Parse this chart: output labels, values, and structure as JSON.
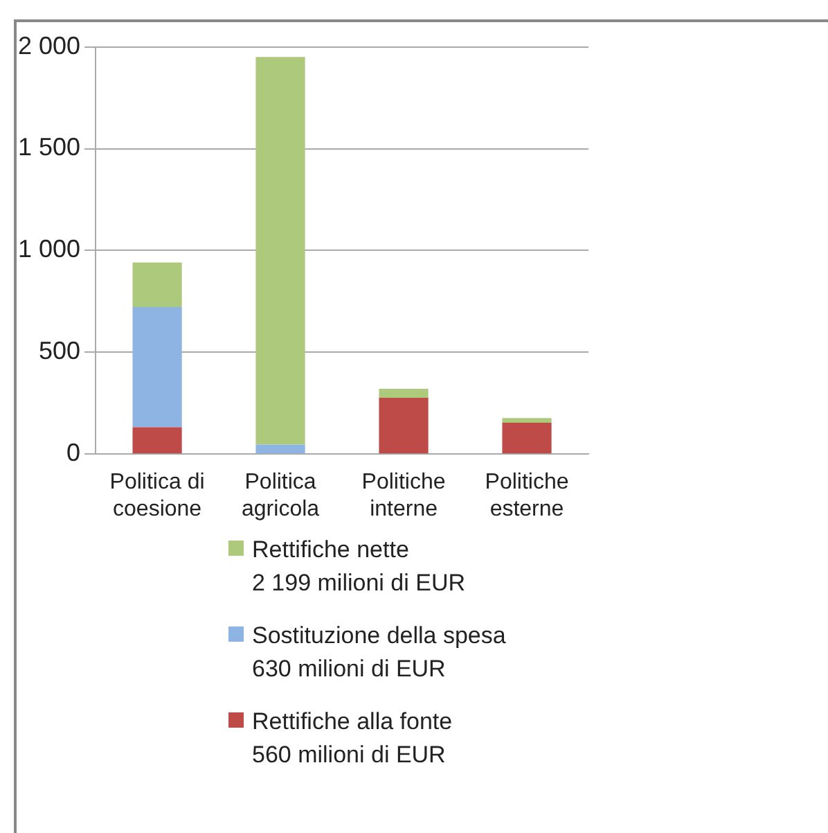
{
  "chart_data": {
    "type": "bar",
    "stacked": true,
    "categories": [
      "Politica di coesione",
      "Politica agricola",
      "Politiche interne",
      "Politiche esterne"
    ],
    "series": [
      {
        "name": "Rettifiche alla fonte\n560 milioni di EUR",
        "color": "#be4b48",
        "values": [
          132,
          null,
          276,
          154
        ]
      },
      {
        "name": "Sostituzione della spesa\n630 milioni di EUR",
        "color": "#8eb4e3",
        "values": [
          590,
          47,
          null,
          null
        ]
      },
      {
        "name": "Rettifiche nette\n2 199 milioni di EUR",
        "color": "#adc97b",
        "values": [
          219,
          1903,
          45,
          23
        ]
      }
    ],
    "ylim": [
      0,
      2000
    ],
    "yticks": [
      0,
      500,
      {
        "value": 1000,
        "label": "1 000"
      },
      {
        "value": 1500,
        "label": "1 500"
      },
      {
        "value": 2000,
        "label": "2 000"
      }
    ],
    "grid": "y",
    "legend": "bottom"
  }
}
